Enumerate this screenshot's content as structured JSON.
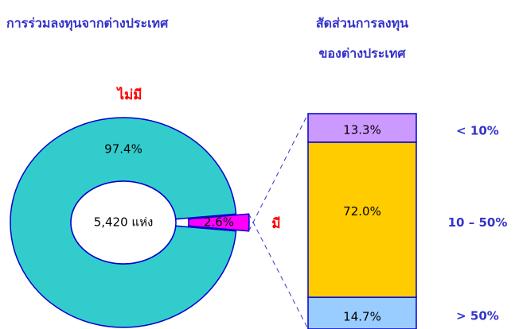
{
  "chart_data": [
    {
      "type": "donut",
      "title": "การร่วมลงทุนจากต่างประเทศ",
      "center_label": "5,420 แห่ง",
      "categories": [
        "ไม่มี",
        "มี"
      ],
      "values": [
        97.4,
        2.6
      ],
      "value_labels": [
        "97.4%",
        "2.6%"
      ],
      "colors": [
        "#33cccc",
        "#ff00ff"
      ]
    },
    {
      "type": "stacked_bar",
      "title": [
        "สัดส่วนการลงทุน",
        "ของต่างประเทศ"
      ],
      "categories": [
        "< 10%",
        "10 – 50%",
        "> 50%"
      ],
      "values": [
        13.3,
        72.0,
        14.7
      ],
      "value_labels": [
        "13.3%",
        "72.0%",
        "14.7%"
      ],
      "colors": [
        "#cc99ff",
        "#ffcc00",
        "#99ccff"
      ]
    }
  ]
}
